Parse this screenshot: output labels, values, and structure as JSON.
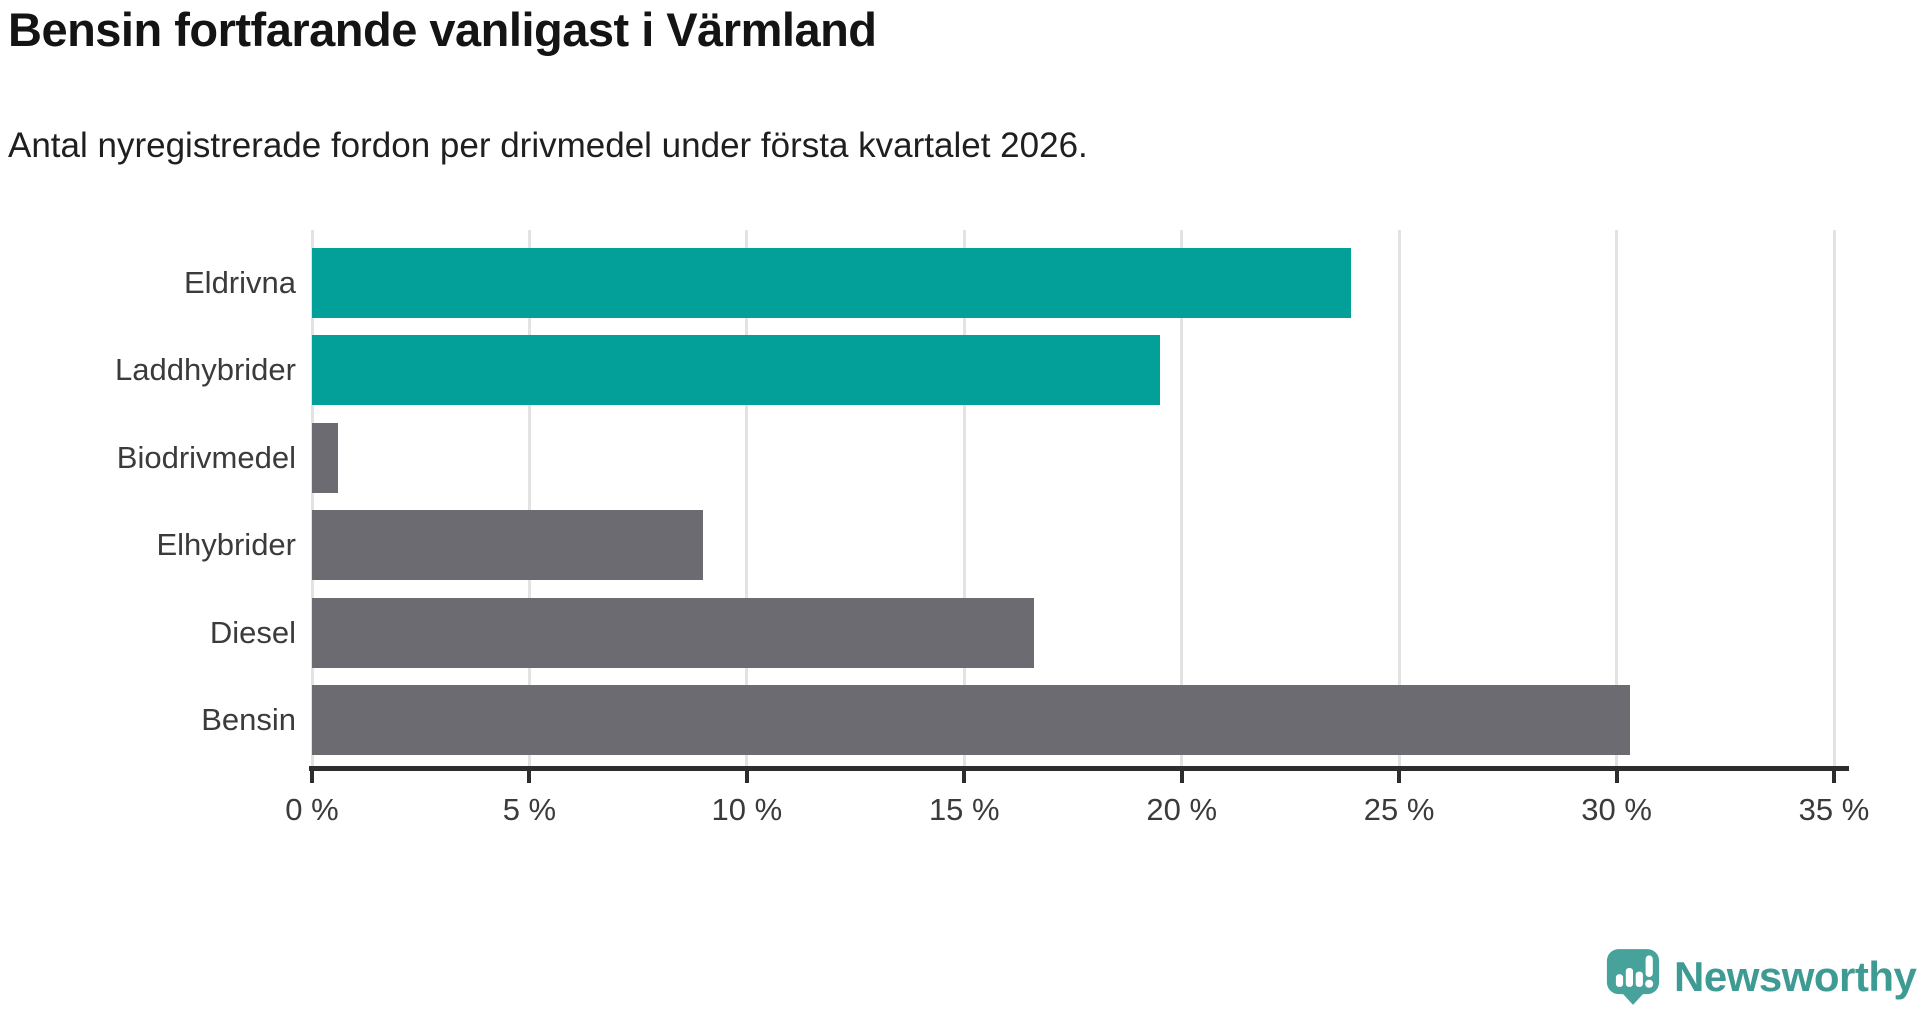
{
  "title": "Bensin fortfarande vanligast i Värmland",
  "subtitle": "Antal nyregistrerade fordon per drivmedel under första kvartalet 2026.",
  "chart_data": {
    "type": "bar",
    "orientation": "horizontal",
    "title": "Bensin fortfarande vanligast i Värmland",
    "subtitle": "Antal nyregistrerade fordon per drivmedel under första kvartalet 2026.",
    "categories": [
      "Eldrivna",
      "Laddhybrider",
      "Biodrivmedel",
      "Elhybrider",
      "Diesel",
      "Bensin"
    ],
    "values": [
      23.9,
      19.5,
      0.6,
      9.0,
      16.6,
      30.3
    ],
    "unit": "%",
    "bar_colors": [
      "#02A099",
      "#02A099",
      "#6C6B72",
      "#6C6B72",
      "#6C6B72",
      "#6C6B72"
    ],
    "highlight_color": "#02A099",
    "default_color": "#6C6B72",
    "xlabel": "",
    "ylabel": "",
    "xlim": [
      0,
      35
    ],
    "x_ticks": [
      0,
      5,
      10,
      15,
      20,
      25,
      30,
      35
    ],
    "x_tick_suffix": " %",
    "grid": true,
    "gridline_color": "#e3e3e3",
    "axis_color": "#2d2d2d",
    "legend": "none"
  },
  "branding": {
    "logo_text": "Newsworthy",
    "logo_color": "#3D9B94",
    "logo_icon": "newsworthy-speech-bubble-chart-icon",
    "logo_icon_color": "#47A29B"
  }
}
